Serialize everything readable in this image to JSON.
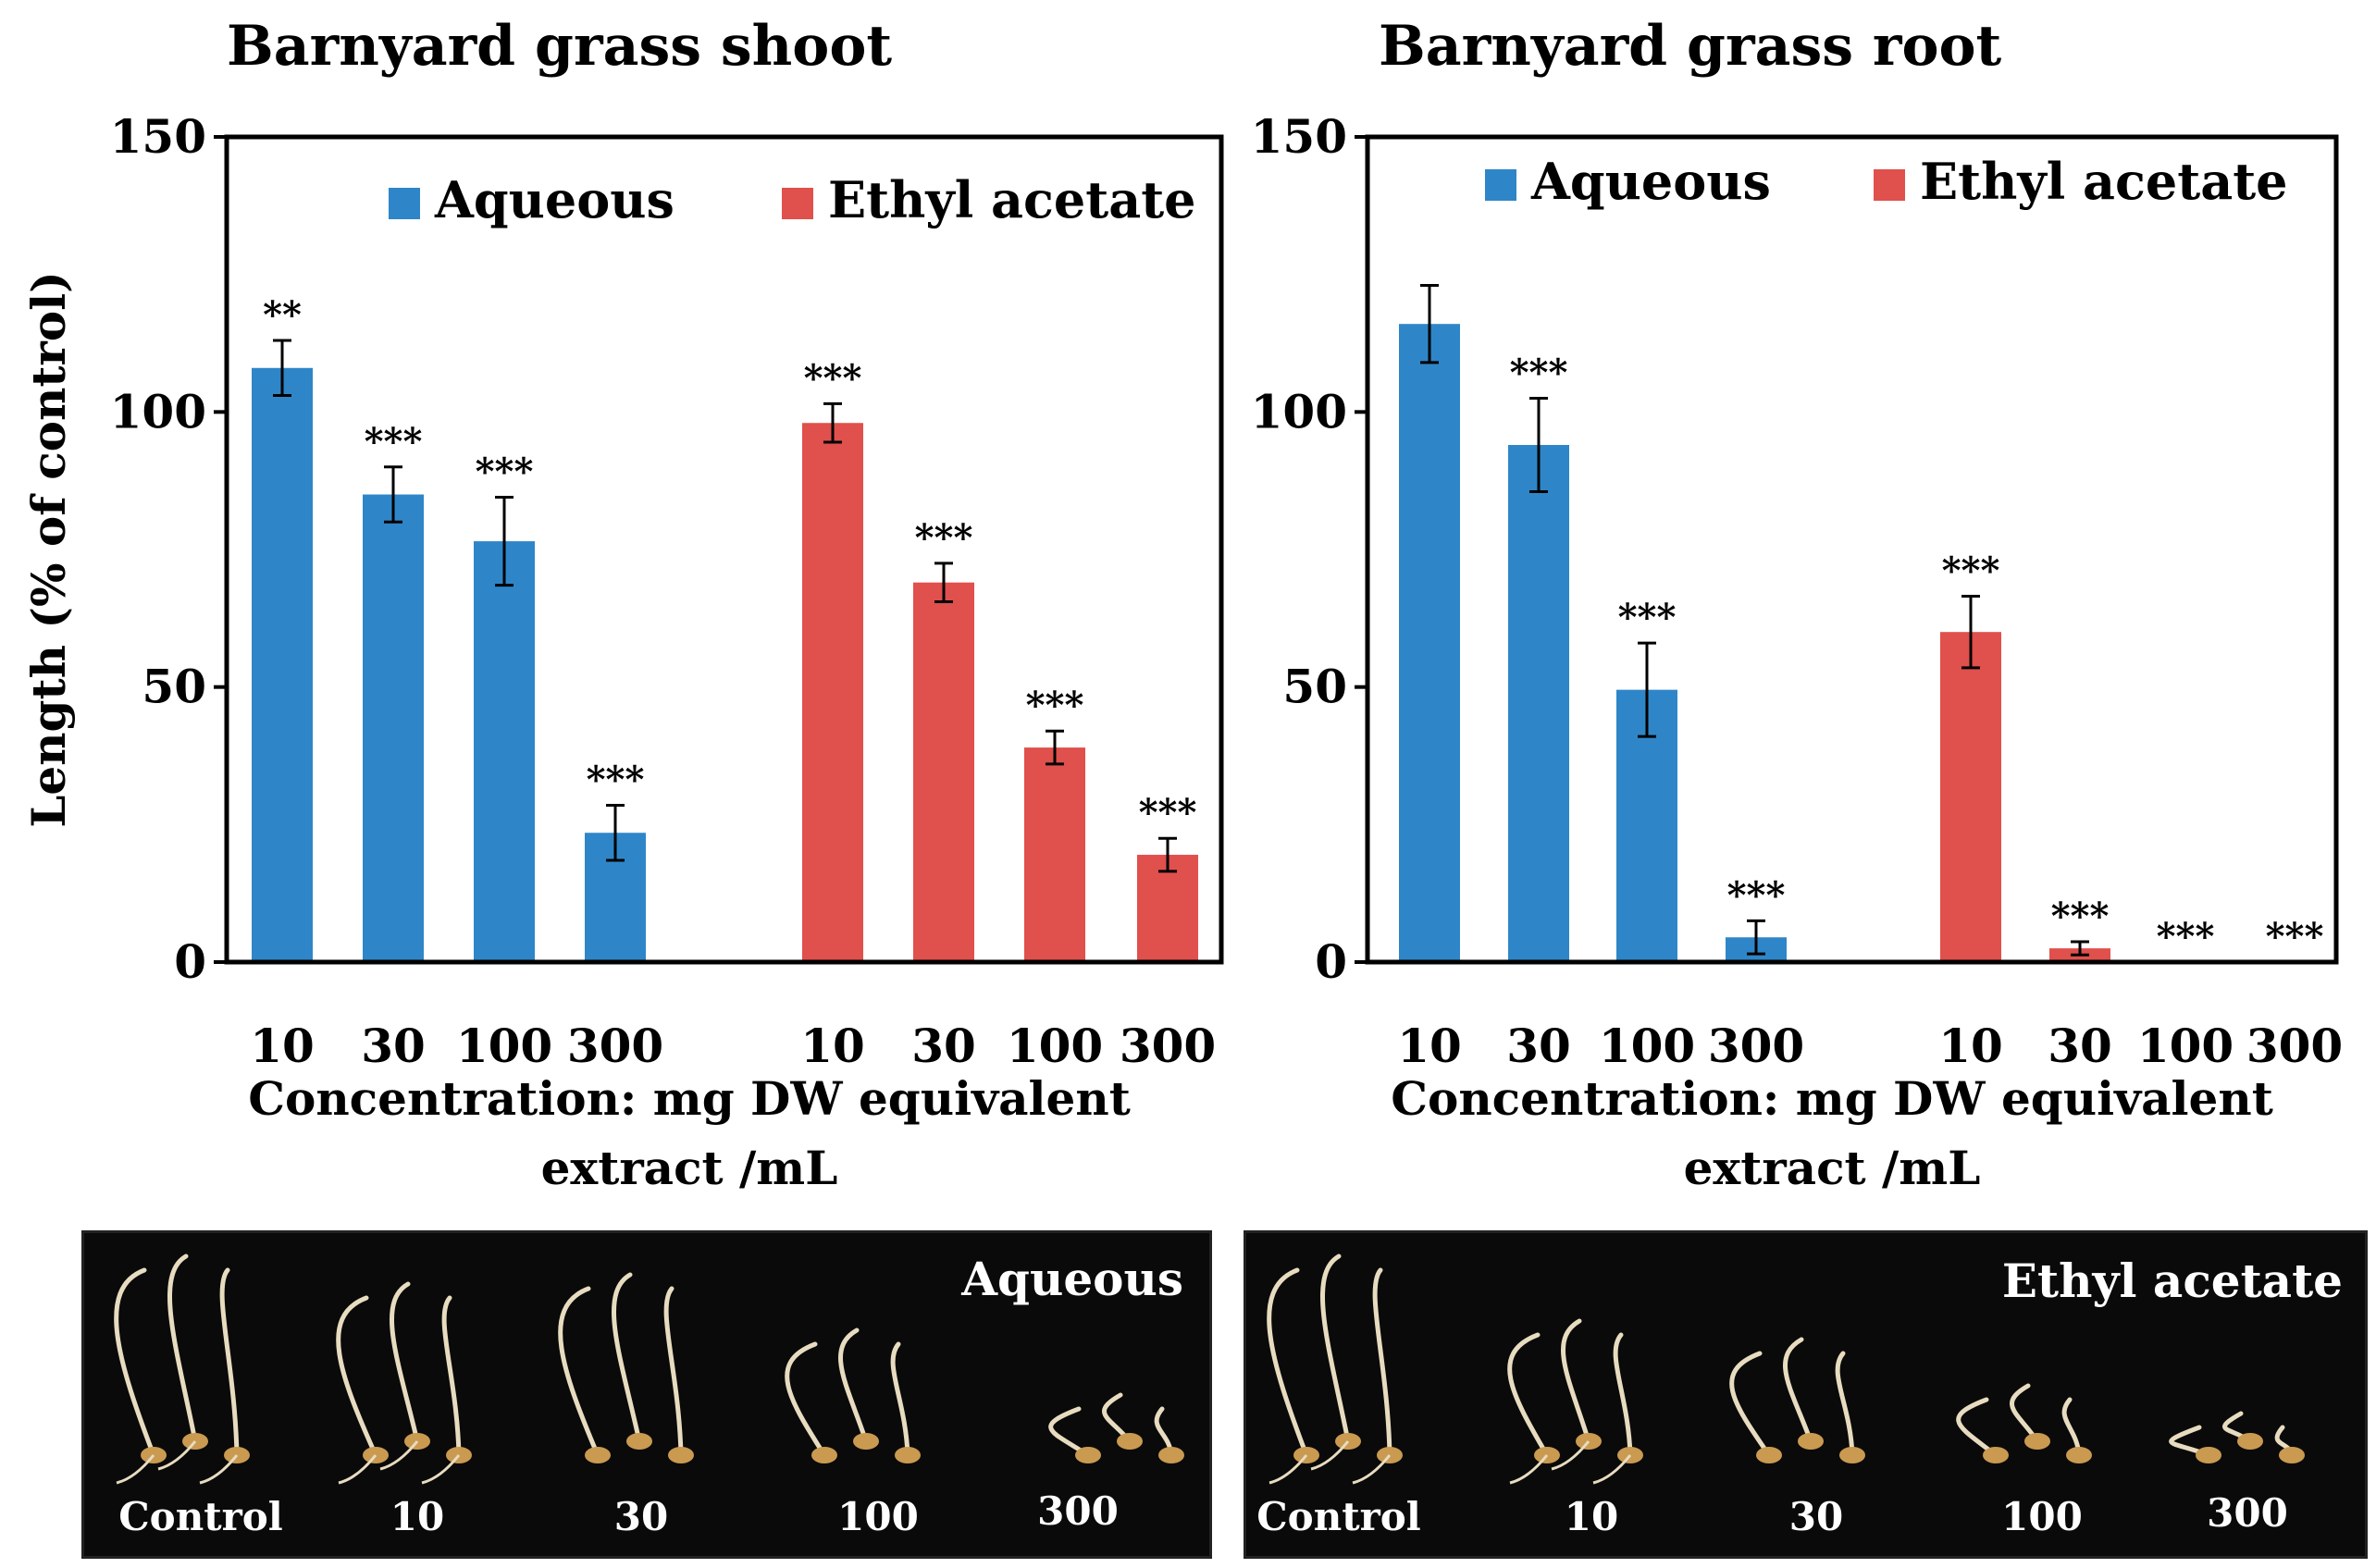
{
  "chart_data": [
    {
      "type": "bar",
      "title": "Barnyard grass shoot",
      "ylabel": "Length (% of control)",
      "xlabel": "Concentration: mg DW equivalent extract /mL",
      "xlabel_lines": [
        "Concentration: mg DW equivalent",
        "extract /mL"
      ],
      "ylim": [
        0,
        150
      ],
      "yticks": [
        "0",
        "50",
        "100",
        "150"
      ],
      "legend_position": "top",
      "categories": [
        "10",
        "30",
        "100",
        "300"
      ],
      "series": [
        {
          "name": "Aqueous",
          "color": "#2e86c8",
          "values": [
            108,
            85,
            76.5,
            23.5
          ],
          "errors": [
            5,
            5,
            8,
            5
          ],
          "significance": [
            "**",
            "***",
            "***",
            "***"
          ]
        },
        {
          "name": "Ethyl acetate",
          "color": "#e0504c",
          "values": [
            98,
            69,
            39,
            19.5
          ],
          "errors": [
            3.5,
            3.5,
            3,
            3
          ],
          "significance": [
            "***",
            "***",
            "***",
            "***"
          ]
        }
      ]
    },
    {
      "type": "bar",
      "title": "Barnyard grass root",
      "ylabel": "",
      "xlabel": "Concentration: mg DW equivalent extract /mL",
      "xlabel_lines": [
        "Concentration: mg DW equivalent",
        "extract /mL"
      ],
      "ylim": [
        0,
        150
      ],
      "yticks": [
        "0",
        "50",
        "100",
        "150"
      ],
      "legend_position": "top",
      "categories": [
        "10",
        "30",
        "100",
        "300"
      ],
      "series": [
        {
          "name": "Aqueous",
          "color": "#2e86c8",
          "values": [
            116,
            94,
            49.5,
            4.5
          ],
          "errors": [
            7,
            8.5,
            8.5,
            3
          ],
          "significance": [
            "",
            "***",
            "***",
            "***"
          ]
        },
        {
          "name": "Ethyl acetate",
          "color": "#e0504c",
          "values": [
            60,
            2.5,
            0,
            0
          ],
          "errors": [
            6.5,
            1.2,
            0,
            0
          ],
          "significance": [
            "***",
            "***",
            "***",
            "***"
          ]
        }
      ]
    }
  ],
  "photos": [
    {
      "title": "Aqueous",
      "labels": [
        "Control",
        "10",
        "30",
        "100",
        "300"
      ],
      "seedling_lengths": [
        1.0,
        0.85,
        0.9,
        0.6,
        0.25
      ]
    },
    {
      "title": "Ethyl acetate",
      "labels": [
        "Control",
        "10",
        "30",
        "100",
        "300"
      ],
      "seedling_lengths": [
        1.0,
        0.65,
        0.55,
        0.3,
        0.15
      ]
    }
  ],
  "colors": {
    "background": "#ffffff",
    "axis": "#000000",
    "photo_bg": "#0a0a0a",
    "seedling": "#e8dcc0",
    "seed": "#c99a50"
  }
}
